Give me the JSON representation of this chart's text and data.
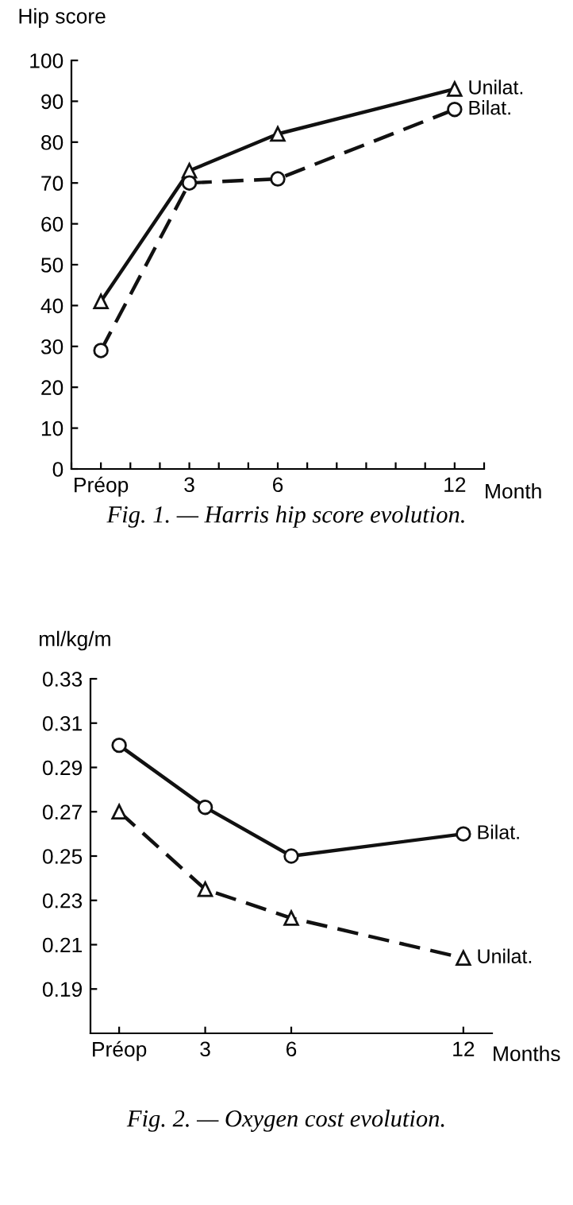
{
  "chart_data": [
    {
      "type": "line",
      "ylabel": "Hip score",
      "xlabel": "Month",
      "x": [
        0,
        3,
        6,
        12
      ],
      "series": [
        {
          "name": "Unilat.",
          "color": "#111111",
          "values": [
            41,
            73,
            82,
            93
          ],
          "marker": "triangle",
          "line_style": "solid"
        },
        {
          "name": "Bilat.",
          "color": "#111111",
          "values": [
            29,
            70,
            71,
            88
          ],
          "marker": "circle",
          "line_style": "dashed"
        }
      ],
      "xlim": [
        -1,
        13
      ],
      "xticks": [
        {
          "value": -1,
          "label": null
        },
        {
          "value": 0,
          "label": "Préop"
        },
        {
          "value": 1,
          "label": null
        },
        {
          "value": 2,
          "label": null
        },
        3,
        {
          "value": 4,
          "label": null
        },
        {
          "value": 5,
          "label": null
        },
        6,
        {
          "value": 7,
          "label": null
        },
        {
          "value": 8,
          "label": null
        },
        {
          "value": 9,
          "label": null
        },
        {
          "value": 10,
          "label": null
        },
        {
          "value": 11,
          "label": null
        },
        12,
        {
          "value": 13,
          "label": null
        }
      ],
      "ylim": [
        0,
        100
      ],
      "yticks": [
        0,
        10,
        20,
        30,
        40,
        50,
        60,
        70,
        80,
        90,
        100
      ],
      "grid": false,
      "legend": false,
      "annotations": [
        "Fig. 1. — Harris hip score evolution."
      ]
    },
    {
      "type": "line",
      "ylabel": "ml/kg/m",
      "xlabel": "Months",
      "x": [
        0,
        3,
        6,
        12
      ],
      "series": [
        {
          "name": "Bilat.",
          "color": "#111111",
          "values": [
            0.3,
            0.272,
            0.25,
            0.26
          ],
          "marker": "circle",
          "line_style": "solid"
        },
        {
          "name": "Unilat.",
          "color": "#111111",
          "values": [
            0.27,
            0.235,
            0.222,
            0.204
          ],
          "marker": "triangle",
          "line_style": "dashed"
        }
      ],
      "xlim": [
        -1,
        13
      ],
      "xticks": [
        {
          "value": 0,
          "label": "Préop"
        },
        3,
        6,
        12
      ],
      "ylim": [
        0.17,
        0.33
      ],
      "yticks": [
        0.19,
        0.21,
        0.23,
        0.25,
        0.27,
        0.29,
        0.31,
        0.33
      ],
      "grid": false,
      "legend": false,
      "annotations": [
        "Fig. 2. — Oxygen cost evolution."
      ]
    }
  ]
}
